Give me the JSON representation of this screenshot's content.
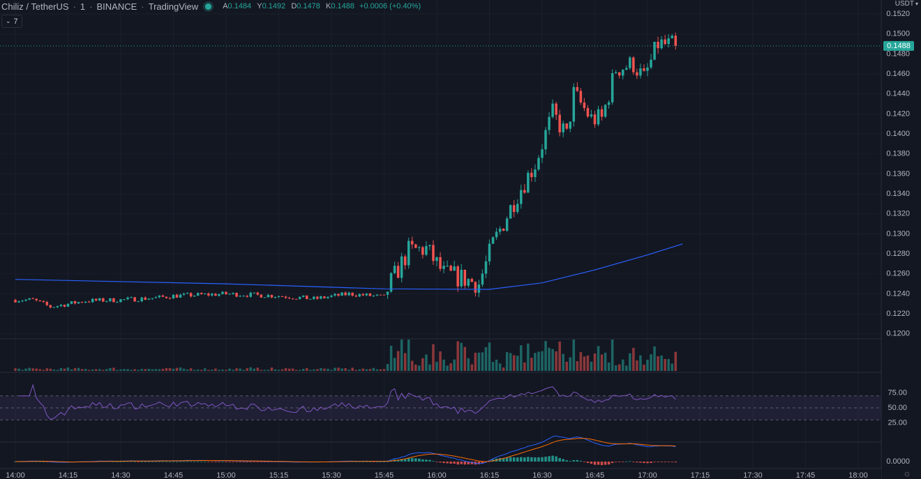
{
  "legend": {
    "symbol": "Chiliz / TetherUS",
    "interval": "1",
    "exchange": "BINANCE",
    "source": "TradingView",
    "status_color": "#26a69a",
    "ohlc": {
      "o_label": "A",
      "o": "0.1484",
      "h_label": "Y",
      "h": "0.1492",
      "l_label": "D",
      "l": "0.1478",
      "c_label": "K",
      "c": "0.1488",
      "change": "+0.0006 (+0.40%)"
    }
  },
  "collapse_button": {
    "icon": "chevron-down-icon",
    "count": "7"
  },
  "price_axis": {
    "currency": "USDT",
    "ticks": [
      "0.1520",
      "0.1500",
      "0.1480",
      "0.1460",
      "0.1440",
      "0.1420",
      "0.1400",
      "0.1380",
      "0.1360",
      "0.1340",
      "0.1320",
      "0.1300",
      "0.1280",
      "0.1260",
      "0.1240",
      "0.1220",
      "0.1200"
    ],
    "last_price": "0.1488",
    "last_price_color": "#26a69a"
  },
  "rsi_axis": {
    "ticks": [
      "75.00",
      "50.00",
      "25.00"
    ]
  },
  "macd_axis": {
    "ticks": [
      "0.0000"
    ]
  },
  "time_axis": {
    "ticks": [
      "14:00",
      "14:15",
      "14:30",
      "14:45",
      "15:00",
      "15:15",
      "15:30",
      "15:45",
      "16:00",
      "16:15",
      "16:30",
      "16:45",
      "17:00",
      "17:15",
      "17:30",
      "17:45",
      "18:00"
    ]
  },
  "settings_icon": "gear-icon",
  "colors": {
    "up": "#26a69a",
    "down": "#ef5350",
    "ma": "#2962ff",
    "rsi": "#7e57c2",
    "macd": "#2962ff",
    "signal": "#ff6d00"
  },
  "chart_data": {
    "type": "candlestick",
    "x_range": [
      "14:00",
      "18:00"
    ],
    "y_range": [
      0.1195,
      0.1527
    ],
    "anchors": [
      {
        "t": "14:00",
        "p": 0.1234
      },
      {
        "t": "14:05",
        "p": 0.1234
      },
      {
        "t": "14:10",
        "p": 0.1227
      },
      {
        "t": "14:20",
        "p": 0.1233
      },
      {
        "t": "14:30",
        "p": 0.1234
      },
      {
        "t": "14:40",
        "p": 0.1236
      },
      {
        "t": "14:45",
        "p": 0.1238
      },
      {
        "t": "15:00",
        "p": 0.124
      },
      {
        "t": "15:15",
        "p": 0.1238
      },
      {
        "t": "15:25",
        "p": 0.1235
      },
      {
        "t": "15:35",
        "p": 0.124
      },
      {
        "t": "15:45",
        "p": 0.1237
      },
      {
        "t": "15:47",
        "p": 0.1252
      },
      {
        "t": "15:52",
        "p": 0.1283
      },
      {
        "t": "15:57",
        "p": 0.1285
      },
      {
        "t": "16:02",
        "p": 0.126
      },
      {
        "t": "16:07",
        "p": 0.1256
      },
      {
        "t": "16:12",
        "p": 0.125
      },
      {
        "t": "16:16",
        "p": 0.129
      },
      {
        "t": "16:23",
        "p": 0.134
      },
      {
        "t": "16:28",
        "p": 0.137
      },
      {
        "t": "16:33",
        "p": 0.142
      },
      {
        "t": "16:37",
        "p": 0.1398
      },
      {
        "t": "16:39",
        "p": 0.144
      },
      {
        "t": "16:44",
        "p": 0.1415
      },
      {
        "t": "16:47",
        "p": 0.1415
      },
      {
        "t": "16:51",
        "p": 0.1465
      },
      {
        "t": "16:56",
        "p": 0.147
      },
      {
        "t": "16:59",
        "p": 0.1455
      },
      {
        "t": "17:03",
        "p": 0.149
      },
      {
        "t": "17:08",
        "p": 0.1488
      }
    ],
    "ma_line": [
      {
        "t": "14:00",
        "p": 0.12545
      },
      {
        "t": "15:00",
        "p": 0.125
      },
      {
        "t": "15:45",
        "p": 0.1245
      },
      {
        "t": "16:15",
        "p": 0.12445
      },
      {
        "t": "16:30",
        "p": 0.1251
      },
      {
        "t": "16:45",
        "p": 0.1264
      },
      {
        "t": "17:00",
        "p": 0.1279
      },
      {
        "t": "17:10",
        "p": 0.129
      }
    ],
    "rsi_levels": [
      70,
      50,
      30
    ],
    "macd_zero": 0
  }
}
